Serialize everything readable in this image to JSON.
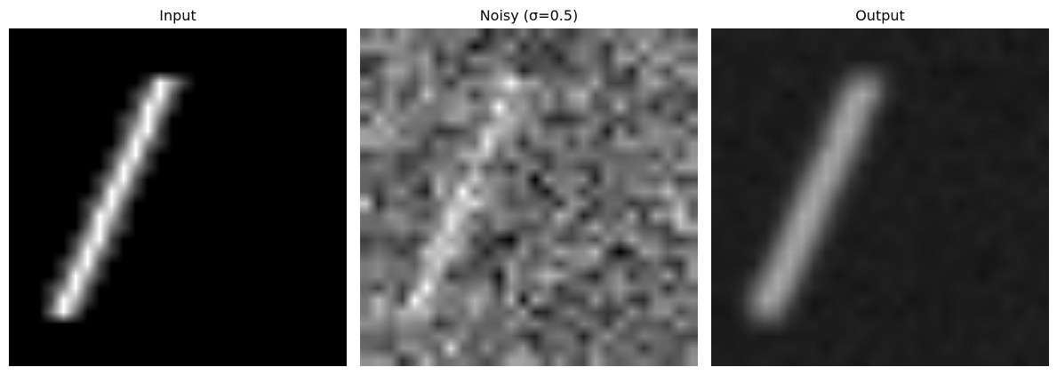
{
  "figure": {
    "panels": [
      {
        "key": "input",
        "title": "Input"
      },
      {
        "key": "noisy",
        "title": "Noisy (σ=0.5)"
      },
      {
        "key": "output",
        "title": "Output"
      }
    ],
    "image_description": {
      "colormap": "grayscale",
      "grid_size": 28,
      "subject": "handwritten digit 1",
      "input_background": "#000000",
      "noisy_background": "mid-gray noise",
      "output_background": "#1c1c1c"
    }
  }
}
